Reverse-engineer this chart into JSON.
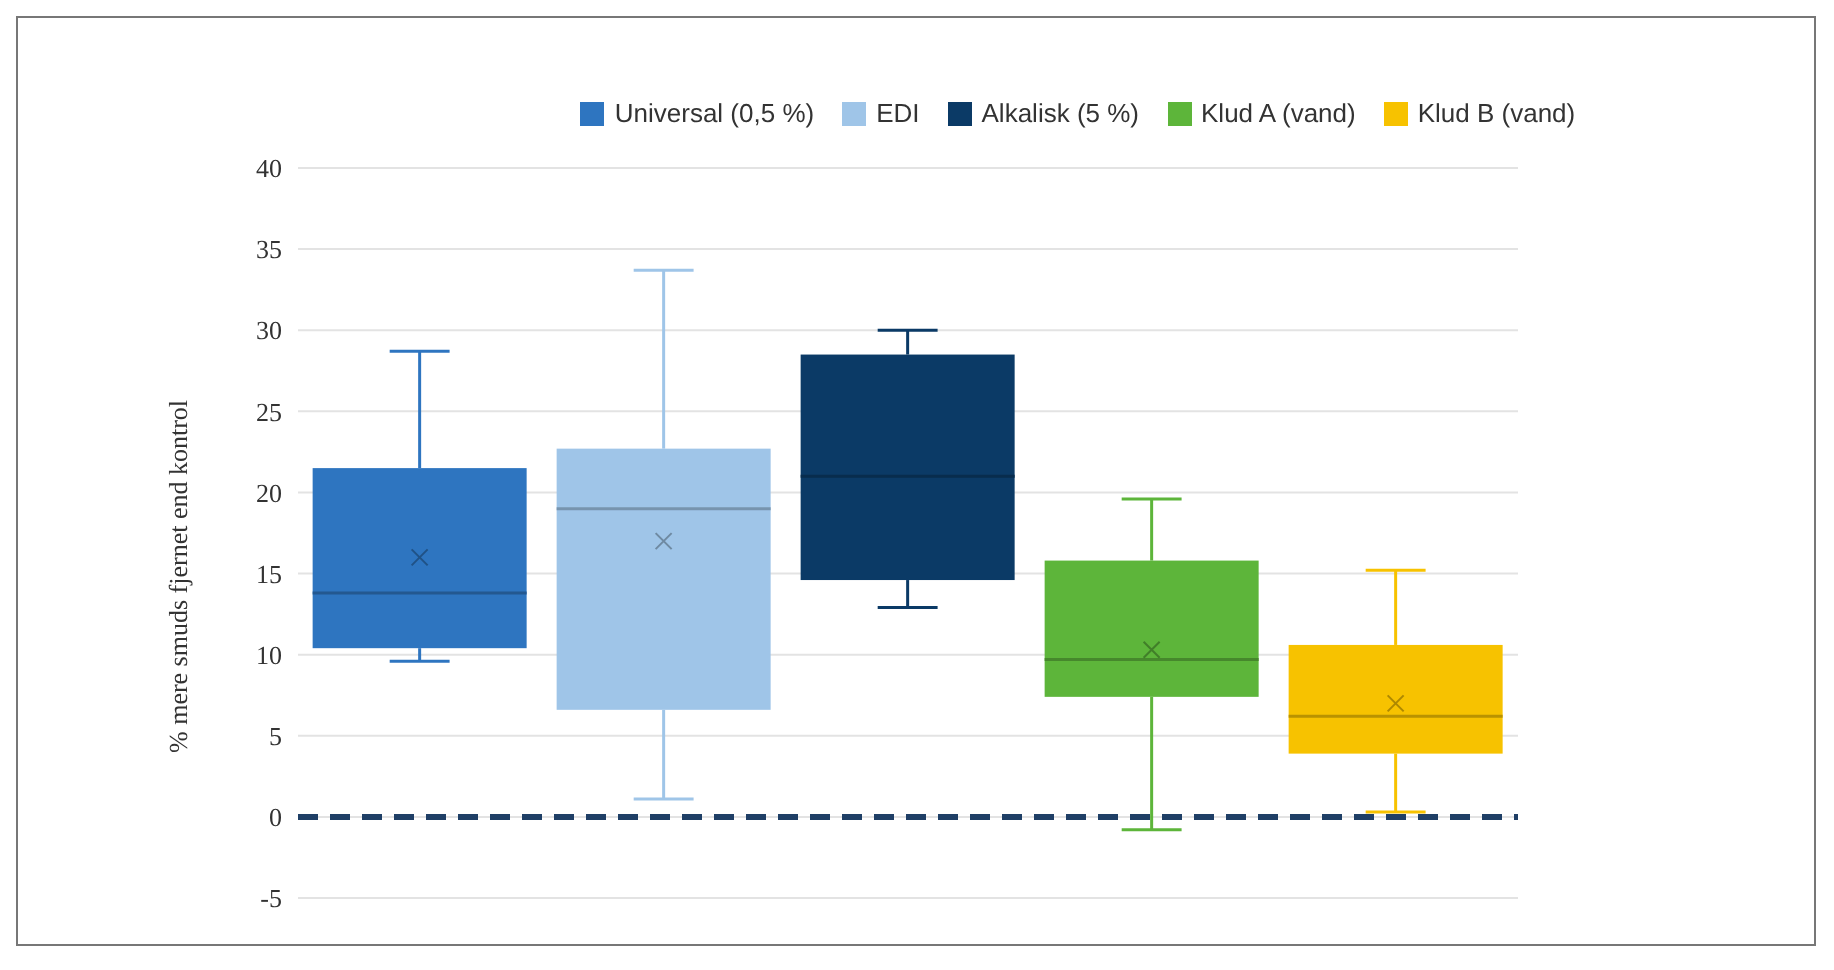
{
  "chart_data": {
    "type": "box",
    "ylabel": "% mere smuds fjernet end kontrol",
    "categories": [
      null,
      null,
      null,
      null,
      null
    ],
    "series": [
      {
        "name": "Universal (0,5 %)",
        "color": "#2e75c0",
        "boxes": [
          {
            "low": 9.6,
            "q1": 10.4,
            "median": 13.8,
            "q3": 21.5,
            "high": 28.7,
            "mean": 16
          },
          null,
          null,
          null,
          null
        ]
      },
      {
        "name": "EDI",
        "color": "#9fc5e8",
        "boxes": [
          null,
          {
            "low": 1.1,
            "q1": 6.6,
            "median": 19,
            "q3": 22.7,
            "high": 33.7,
            "mean": 17
          },
          null,
          null,
          null
        ]
      },
      {
        "name": "Alkalisk (5 %)",
        "color": "#0b3a66",
        "boxes": [
          null,
          null,
          {
            "low": 12.9,
            "q1": 14.6,
            "median": 21,
            "q3": 28.5,
            "high": 30
          },
          null,
          null
        ]
      },
      {
        "name": "Klud A (vand)",
        "color": "#5db53a",
        "boxes": [
          null,
          null,
          null,
          {
            "low": -0.8,
            "q1": 7.4,
            "median": 9.7,
            "q3": 15.8,
            "high": 19.6,
            "mean": 10.3
          },
          null
        ]
      },
      {
        "name": "Klud B (vand)",
        "color": "#f7c200",
        "boxes": [
          null,
          null,
          null,
          null,
          {
            "low": 0.3,
            "q1": 3.9,
            "median": 6.2,
            "q3": 10.6,
            "high": 15.2,
            "mean": 7
          }
        ]
      }
    ],
    "ylim": [
      -5,
      40
    ],
    "yticks": [
      -5,
      0,
      5,
      10,
      15,
      20,
      25,
      30,
      35,
      40
    ],
    "grid": "y",
    "legend": "top",
    "ref_lines": [
      {
        "axis": "y",
        "value": 0,
        "color": "#1f3f66",
        "line_style": "dashed"
      }
    ]
  }
}
